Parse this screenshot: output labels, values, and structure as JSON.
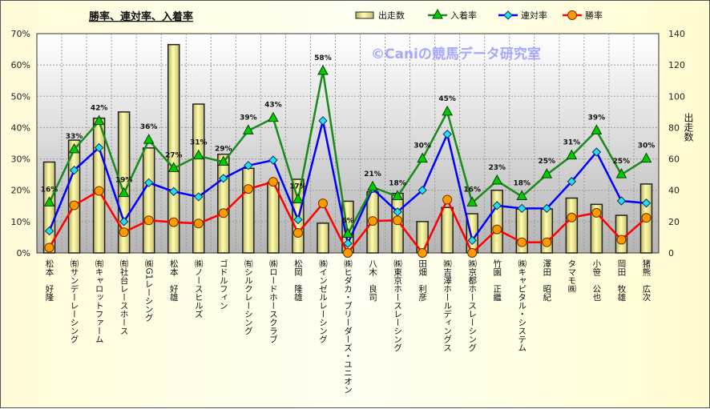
{
  "chart_data": {
    "type": "bar+line",
    "title": "勝率、連対率、入着率",
    "watermark": "©Caniの競馬データ研究室",
    "y_left": {
      "ticks": [
        "0%",
        "10%",
        "20%",
        "30%",
        "40%",
        "50%",
        "60%",
        "70%"
      ],
      "range": [
        0,
        70
      ]
    },
    "y_right": {
      "label": "出走数",
      "ticks": [
        "0",
        "20",
        "40",
        "60",
        "80",
        "100",
        "120",
        "140"
      ],
      "range": [
        0,
        140
      ]
    },
    "legend_position": "top",
    "grid": true,
    "categories": [
      "松本　好隆",
      "㈲サンデーレーシング",
      "㈲キャロットファーム",
      "㈲社台レースホース",
      "㈱G1レーシング",
      "松本　好雄",
      "㈱ノースヒルズ",
      "ゴドルフィン",
      "㈲シルクレーシング",
      "㈱ロードホースクラブ",
      "松岡　隆雄",
      "㈱インゼルレーシング",
      "㈱ヒダカ・ブリーダーズ・ユニオン",
      "八木　良司",
      "㈱東京ホースレーシング",
      "田畑　利彦",
      "㈱吉澤ホールディングス",
      "㈱京都ホースレーシング",
      "竹園　正繼",
      "㈱キャピタル・システム",
      "澤田　昭紀",
      "タマモ㈱",
      "小笹　公也",
      "岡田　牧雄",
      "猪熊　広次"
    ],
    "series": [
      {
        "name": "出走数",
        "type": "bar",
        "axis": "right",
        "color": "#f2ee90",
        "values": [
          58,
          72,
          86,
          90,
          67,
          133,
          95,
          63,
          54,
          45,
          47,
          19,
          33,
          39,
          38,
          20,
          29,
          25,
          40,
          28,
          28,
          35,
          31,
          24,
          44
        ]
      },
      {
        "name": "入着率",
        "type": "line",
        "axis": "left",
        "color": "#1a8a1a",
        "marker": "triangle",
        "show_labels": true,
        "values": [
          16,
          33,
          42,
          19,
          36,
          27,
          31,
          29,
          39,
          43,
          17,
          58,
          6,
          21,
          18,
          30,
          45,
          16,
          23,
          18,
          25,
          31,
          39,
          25,
          30
        ],
        "labels": [
          "16%",
          "33%",
          "42%",
          "19%",
          "36%",
          "27%",
          "31%",
          "29%",
          "39%",
          "43%",
          "17%",
          "58%",
          "6%",
          "21%",
          "18%",
          "30%",
          "45%",
          "16%",
          "23%",
          "18%",
          "25%",
          "31%",
          "39%",
          "25%",
          "30%"
        ]
      },
      {
        "name": "連対率",
        "type": "line",
        "axis": "left",
        "color": "#0000ff",
        "marker": "diamond",
        "values": [
          7,
          26.4,
          33.6,
          10,
          22.4,
          19.6,
          17.9,
          23.8,
          27.9,
          29.6,
          10.6,
          42.2,
          3,
          20.5,
          13.1,
          20,
          37.9,
          4,
          15.1,
          14.2,
          14.2,
          22.8,
          32.2,
          16.6,
          15.9
        ]
      },
      {
        "name": "勝率",
        "type": "line",
        "axis": "left",
        "color": "#ff0000",
        "marker": "circle",
        "values": [
          1.7,
          15.2,
          19.8,
          6.6,
          10.4,
          9.8,
          9.4,
          12.7,
          20.4,
          22.7,
          6.4,
          15.8,
          0,
          10.2,
          10.4,
          0,
          17,
          0,
          7.5,
          3.4,
          3.4,
          11.3,
          12.8,
          4.2,
          11.2
        ]
      }
    ]
  }
}
